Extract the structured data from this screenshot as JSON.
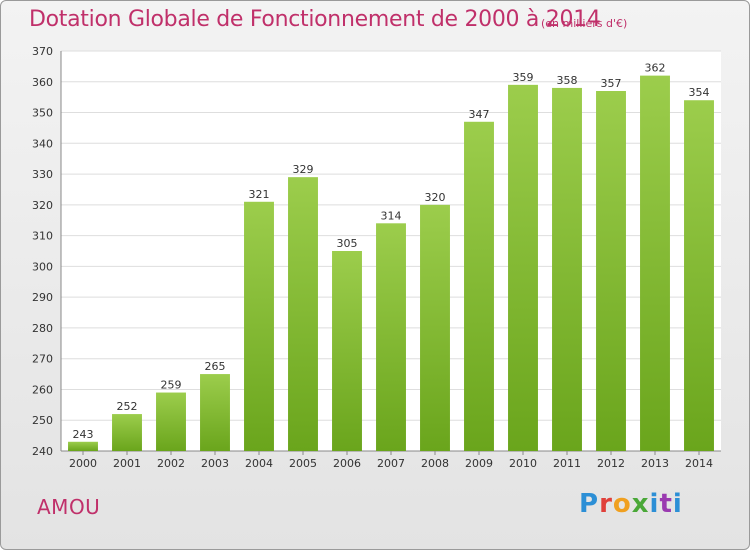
{
  "chart_data": {
    "type": "bar",
    "title": "Dotation Globale de Fonctionnement de 2000 à 2014",
    "subtitle": "(en milliers d'€)",
    "categories": [
      "2000",
      "2001",
      "2002",
      "2003",
      "2004",
      "2005",
      "2006",
      "2007",
      "2008",
      "2009",
      "2010",
      "2011",
      "2012",
      "2013",
      "2014"
    ],
    "values": [
      243,
      252,
      259,
      265,
      321,
      329,
      305,
      314,
      320,
      347,
      359,
      358,
      357,
      362,
      354
    ],
    "ylim": [
      240,
      370
    ],
    "yticks": [
      240,
      250,
      260,
      270,
      280,
      290,
      300,
      310,
      320,
      330,
      340,
      350,
      360,
      370
    ],
    "xlabel": "",
    "ylabel": "",
    "grid": true,
    "colors": {
      "bar_top": "#9ccd4c",
      "bar_bottom": "#6aa51c",
      "title": "#c0306a"
    }
  },
  "footer": {
    "commune": "AMOU",
    "logo_letters": [
      "P",
      "r",
      "o",
      "x",
      "i",
      "t",
      "i"
    ]
  }
}
